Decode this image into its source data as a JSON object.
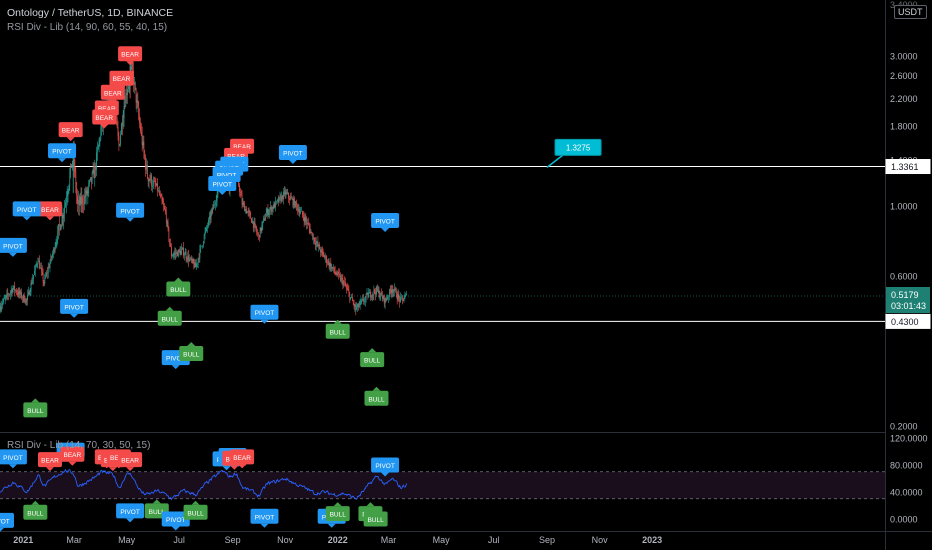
{
  "header": {
    "symbol_line": "Ontology / TetherUS, 1D, BINANCE",
    "indicator_main": "RSI Div - Lib (14, 90, 60, 55, 40, 15)",
    "indicator_sub": "RSI Div - Lib (14, 70, 30, 50, 15)",
    "currency": "USDT"
  },
  "colors": {
    "background": "#000000",
    "up": "#26a69a",
    "down": "#ef5350",
    "bear": "#f44a4a",
    "bull": "#43a047",
    "pivot": "#2196f3",
    "rsi_line": "#2962ff",
    "hline": "#ffffff",
    "grid_text": "#b2b5be"
  },
  "chart_data": [
    {
      "type": "candlestick",
      "title": "Ontology / TetherUS, 1D, BINANCE",
      "y_scale": "log",
      "ylim": [
        0.13,
        4.2
      ],
      "y_ticks": [
        3.0,
        2.6,
        2.2,
        1.8,
        1.4,
        1.0,
        0.6,
        0.2
      ],
      "y_tick_labels": [
        "3.0000",
        "2.6000",
        "2.2000",
        "1.8000",
        "1.4000",
        "1.0000",
        "0.6000",
        "0.2000"
      ],
      "x_range": [
        "2020-12-05",
        "2023-02-15"
      ],
      "x_ticks": [
        {
          "date": "2021-01-01",
          "label": "2021"
        },
        {
          "date": "2021-03-01",
          "label": "Mar"
        },
        {
          "date": "2021-05-01",
          "label": "May"
        },
        {
          "date": "2021-07-01",
          "label": "Jul"
        },
        {
          "date": "2021-09-01",
          "label": "Sep"
        },
        {
          "date": "2021-11-01",
          "label": "Nov"
        },
        {
          "date": "2022-01-01",
          "label": "2022"
        },
        {
          "date": "2022-03-01",
          "label": "Mar"
        },
        {
          "date": "2022-05-01",
          "label": "May"
        },
        {
          "date": "2022-07-01",
          "label": "Jul"
        },
        {
          "date": "2022-09-01",
          "label": "Sep"
        },
        {
          "date": "2022-11-01",
          "label": "Nov"
        },
        {
          "date": "2023-01-01",
          "label": "2023"
        }
      ],
      "close_path": [
        [
          "2020-12-05",
          0.48
        ],
        [
          "2020-12-20",
          0.55
        ],
        [
          "2021-01-05",
          0.5
        ],
        [
          "2021-01-18",
          0.68
        ],
        [
          "2021-01-25",
          0.57
        ],
        [
          "2021-02-05",
          0.72
        ],
        [
          "2021-02-18",
          1.0
        ],
        [
          "2021-02-28",
          1.45
        ],
        [
          "2021-03-05",
          1.0
        ],
        [
          "2021-03-15",
          1.08
        ],
        [
          "2021-03-25",
          1.3
        ],
        [
          "2021-04-01",
          1.75
        ],
        [
          "2021-04-08",
          2.05
        ],
        [
          "2021-04-15",
          2.25
        ],
        [
          "2021-04-22",
          1.55
        ],
        [
          "2021-04-28",
          2.1
        ],
        [
          "2021-05-03",
          2.5
        ],
        [
          "2021-05-07",
          2.75
        ],
        [
          "2021-05-12",
          2.2
        ],
        [
          "2021-05-19",
          1.6
        ],
        [
          "2021-05-25",
          1.25
        ],
        [
          "2021-06-05",
          1.15
        ],
        [
          "2021-06-15",
          0.95
        ],
        [
          "2021-06-22",
          0.7
        ],
        [
          "2021-07-05",
          0.72
        ],
        [
          "2021-07-20",
          0.64
        ],
        [
          "2021-07-31",
          0.82
        ],
        [
          "2021-08-10",
          1.0
        ],
        [
          "2021-08-20",
          1.25
        ],
        [
          "2021-08-28",
          1.15
        ],
        [
          "2021-09-05",
          1.3
        ],
        [
          "2021-09-12",
          1.02
        ],
        [
          "2021-09-22",
          0.92
        ],
        [
          "2021-10-01",
          0.8
        ],
        [
          "2021-10-10",
          0.95
        ],
        [
          "2021-10-22",
          1.02
        ],
        [
          "2021-11-01",
          1.1
        ],
        [
          "2021-11-12",
          1.02
        ],
        [
          "2021-11-25",
          0.9
        ],
        [
          "2021-12-05",
          0.78
        ],
        [
          "2021-12-15",
          0.7
        ],
        [
          "2021-12-28",
          0.62
        ],
        [
          "2022-01-08",
          0.57
        ],
        [
          "2022-01-22",
          0.47
        ],
        [
          "2022-02-05",
          0.52
        ],
        [
          "2022-02-15",
          0.54
        ],
        [
          "2022-02-25",
          0.5
        ],
        [
          "2022-03-05",
          0.55
        ],
        [
          "2022-03-15",
          0.5
        ],
        [
          "2022-03-22",
          0.518
        ]
      ],
      "horizontal_lines": [
        1.3361,
        0.43
      ],
      "price_labels": [
        {
          "value": 1.3361,
          "text": "1.3361",
          "style": "line"
        },
        {
          "value": 0.5179,
          "text": "0.5179",
          "countdown": "03:01:43",
          "style": "last"
        },
        {
          "value": 0.43,
          "text": "0.4300",
          "style": "line"
        }
      ],
      "callout": {
        "date": "2022-09-01",
        "value": 1.3275,
        "text": "1.3275"
      },
      "markers": [
        {
          "label": "BEAR",
          "date": "2021-05-05",
          "value": 3.05
        },
        {
          "label": "BEAR",
          "date": "2021-04-25",
          "value": 2.55
        },
        {
          "label": "BEAR",
          "date": "2021-04-15",
          "value": 2.3
        },
        {
          "label": "BEAR",
          "date": "2021-04-08",
          "value": 2.05
        },
        {
          "label": "BEAR",
          "date": "2021-04-05",
          "value": 1.92
        },
        {
          "label": "BEAR",
          "date": "2021-02-25",
          "value": 1.75
        },
        {
          "label": "BEAR",
          "date": "2021-02-01",
          "value": 0.98
        },
        {
          "label": "BEAR",
          "date": "2021-09-12",
          "value": 1.55
        },
        {
          "label": "BEAR",
          "date": "2021-09-05",
          "value": 1.45
        },
        {
          "label": "PIVOT",
          "date": "2021-02-15",
          "value": 1.5
        },
        {
          "label": "PIVOT",
          "date": "2021-01-05",
          "value": 0.98
        },
        {
          "label": "PIVOT",
          "date": "2020-12-20",
          "value": 0.75
        },
        {
          "label": "PIVOT",
          "date": "2021-05-05",
          "value": 0.97
        },
        {
          "label": "PIVOT",
          "date": "2021-09-03",
          "value": 1.36
        },
        {
          "label": "PIVOT",
          "date": "2021-08-28",
          "value": 1.32
        },
        {
          "label": "PIVOT",
          "date": "2021-08-25",
          "value": 1.26
        },
        {
          "label": "PIVOT",
          "date": "2021-08-20",
          "value": 1.18
        },
        {
          "label": "PIVOT",
          "date": "2021-11-10",
          "value": 1.48
        },
        {
          "label": "PIVOT",
          "date": "2022-02-25",
          "value": 0.9
        },
        {
          "label": "PIVOT",
          "date": "2021-03-01",
          "value": 0.48
        },
        {
          "label": "PIVOT",
          "date": "2021-10-08",
          "value": 0.46
        },
        {
          "label": "PIVOT",
          "date": "2021-06-27",
          "value": 0.33
        },
        {
          "label": "BULL",
          "date": "2021-06-20",
          "value": 0.44
        },
        {
          "label": "BULL",
          "date": "2021-06-30",
          "value": 0.545
        },
        {
          "label": "BULL",
          "date": "2021-07-15",
          "value": 0.34
        },
        {
          "label": "BULL",
          "date": "2021-01-15",
          "value": 0.225
        },
        {
          "label": "BULL",
          "date": "2022-01-01",
          "value": 0.4
        },
        {
          "label": "BULL",
          "date": "2022-02-10",
          "value": 0.325
        },
        {
          "label": "BULL",
          "date": "2022-02-15",
          "value": 0.245
        }
      ]
    },
    {
      "type": "line",
      "title": "RSI Div - Lib (14, 70, 30, 50, 15)",
      "ylim": [
        -10,
        128
      ],
      "y_ticks": [
        120,
        80,
        40,
        0
      ],
      "y_tick_labels": [
        "120.0000",
        "80.0000",
        "40.0000",
        "0.0000"
      ],
      "bands": [
        70,
        30
      ],
      "series": [
        {
          "values": [
            [
              "2020-12-05",
              42
            ],
            [
              "2020-12-20",
              55
            ],
            [
              "2021-01-05",
              40
            ],
            [
              "2021-01-18",
              66
            ],
            [
              "2021-01-25",
              48
            ],
            [
              "2021-02-05",
              62
            ],
            [
              "2021-02-18",
              72
            ],
            [
              "2021-02-28",
              68
            ],
            [
              "2021-03-05",
              48
            ],
            [
              "2021-03-15",
              55
            ],
            [
              "2021-03-25",
              62
            ],
            [
              "2021-04-01",
              70
            ],
            [
              "2021-04-08",
              68
            ],
            [
              "2021-04-15",
              66
            ],
            [
              "2021-04-22",
              45
            ],
            [
              "2021-04-28",
              62
            ],
            [
              "2021-05-03",
              68
            ],
            [
              "2021-05-07",
              64
            ],
            [
              "2021-05-12",
              50
            ],
            [
              "2021-05-19",
              38
            ],
            [
              "2021-05-25",
              36
            ],
            [
              "2021-06-05",
              42
            ],
            [
              "2021-06-15",
              36
            ],
            [
              "2021-06-22",
              30
            ],
            [
              "2021-07-05",
              42
            ],
            [
              "2021-07-20",
              36
            ],
            [
              "2021-07-31",
              52
            ],
            [
              "2021-08-10",
              62
            ],
            [
              "2021-08-20",
              72
            ],
            [
              "2021-08-28",
              62
            ],
            [
              "2021-09-05",
              68
            ],
            [
              "2021-09-12",
              46
            ],
            [
              "2021-09-22",
              42
            ],
            [
              "2021-10-01",
              34
            ],
            [
              "2021-10-10",
              52
            ],
            [
              "2021-10-22",
              56
            ],
            [
              "2021-11-01",
              60
            ],
            [
              "2021-11-12",
              52
            ],
            [
              "2021-11-25",
              45
            ],
            [
              "2021-12-05",
              38
            ],
            [
              "2021-12-15",
              40
            ],
            [
              "2021-12-28",
              36
            ],
            [
              "2022-01-08",
              38
            ],
            [
              "2022-01-22",
              30
            ],
            [
              "2022-02-05",
              50
            ],
            [
              "2022-02-15",
              64
            ],
            [
              "2022-02-25",
              50
            ],
            [
              "2022-03-05",
              60
            ],
            [
              "2022-03-15",
              46
            ],
            [
              "2022-03-22",
              52
            ]
          ]
        }
      ],
      "markers": [
        {
          "label": "PIVOT",
          "date": "2020-12-20",
          "value": 92
        },
        {
          "label": "PIVOT",
          "date": "2021-02-25",
          "value": 102
        },
        {
          "label": "BEAR",
          "date": "2021-02-01",
          "value": 88
        },
        {
          "label": "BEAR",
          "date": "2021-02-27",
          "value": 96
        },
        {
          "label": "BEAR",
          "date": "2021-04-08",
          "value": 92
        },
        {
          "label": "BEAR",
          "date": "2021-04-15",
          "value": 88
        },
        {
          "label": "BEAR",
          "date": "2021-04-22",
          "value": 92
        },
        {
          "label": "BEAR",
          "date": "2021-05-05",
          "value": 88
        },
        {
          "label": "PIVOT",
          "date": "2021-08-25",
          "value": 89
        },
        {
          "label": "PIVOT",
          "date": "2021-09-01",
          "value": 94
        },
        {
          "label": "BEAR",
          "date": "2021-09-03",
          "value": 90
        },
        {
          "label": "BEAR",
          "date": "2021-09-12",
          "value": 92
        },
        {
          "label": "PIVOT",
          "date": "2022-02-25",
          "value": 80
        },
        {
          "label": "PIVOT",
          "date": "2020-12-05",
          "value": -2
        },
        {
          "label": "BULL",
          "date": "2021-01-15",
          "value": 10
        },
        {
          "label": "PIVOT",
          "date": "2021-05-05",
          "value": 12
        },
        {
          "label": "BULL",
          "date": "2021-06-05",
          "value": 12
        },
        {
          "label": "PIVOT",
          "date": "2021-06-27",
          "value": 0
        },
        {
          "label": "BULL",
          "date": "2021-07-20",
          "value": 10
        },
        {
          "label": "PIVOT",
          "date": "2021-10-08",
          "value": 4
        },
        {
          "label": "PIVOT",
          "date": "2021-12-25",
          "value": 4
        },
        {
          "label": "BULL",
          "date": "2022-01-01",
          "value": 8
        },
        {
          "label": "BULL",
          "date": "2022-02-08",
          "value": 8
        },
        {
          "label": "BULL",
          "date": "2022-02-14",
          "value": 0
        }
      ]
    }
  ]
}
